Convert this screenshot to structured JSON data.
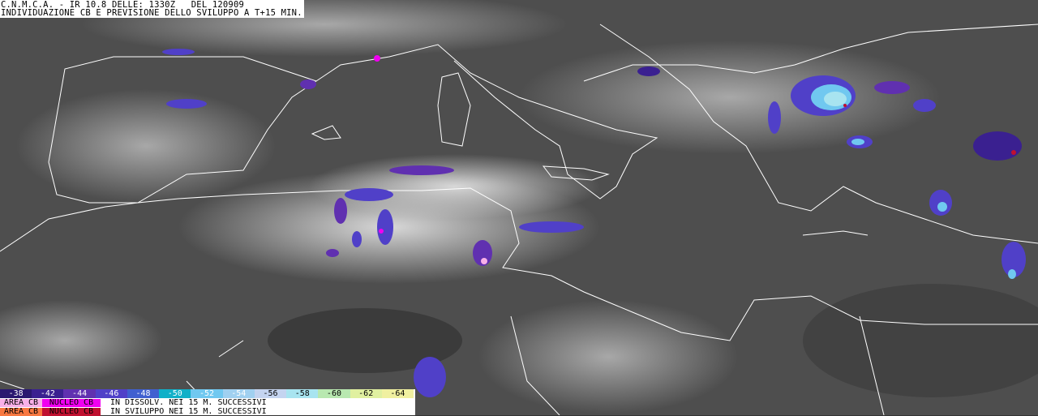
{
  "header": {
    "line1": "C.N.M.C.A. - IR 10.8 DELLE: 1330Z   DEL 120909",
    "line2": "INDIVIDUAZIONE CB E PREVISIONE DELLO SVILUPPO A T+15 MIN."
  },
  "legend": {
    "scale": [
      {
        "label": "-38",
        "color": "#2a1870",
        "text": "#ffffff"
      },
      {
        "label": "-42",
        "color": "#3a2090",
        "text": "#ffffff"
      },
      {
        "label": "-44",
        "color": "#6030b0",
        "text": "#ffffff"
      },
      {
        "label": "-46",
        "color": "#5040c8",
        "text": "#ffffff"
      },
      {
        "label": "-48",
        "color": "#4060d0",
        "text": "#ffffff"
      },
      {
        "label": "-50",
        "color": "#10b0c8",
        "text": "#ffffff"
      },
      {
        "label": "-52",
        "color": "#70c8f0",
        "text": "#ffffff"
      },
      {
        "label": "-54",
        "color": "#a0d0f0",
        "text": "#ffffff"
      },
      {
        "label": "-56",
        "color": "#c4d4f0",
        "text": "#000000"
      },
      {
        "label": "-58",
        "color": "#a8e4f0",
        "text": "#000000"
      },
      {
        "label": "-60",
        "color": "#b8e8b0",
        "text": "#000000"
      },
      {
        "label": "-62",
        "color": "#e0f0a0",
        "text": "#000000"
      },
      {
        "label": "-64",
        "color": "#f0f0a0",
        "text": "#000000"
      }
    ],
    "rows": [
      {
        "area_label": "AREA CB",
        "area_color": "#f8b0e8",
        "nucleus_label": "NUCLEO CB",
        "nucleus_color": "#f000f0",
        "text": "IN DISSOLV. NEI 15 M. SUCCESSIVI"
      },
      {
        "area_label": "AREA CB",
        "area_color": "#f87840",
        "nucleus_label": "NUCLEO CB",
        "nucleus_color": "#c01030",
        "text": "IN SVILUPPO NEI 15 M. SUCCESSIVI"
      }
    ]
  }
}
